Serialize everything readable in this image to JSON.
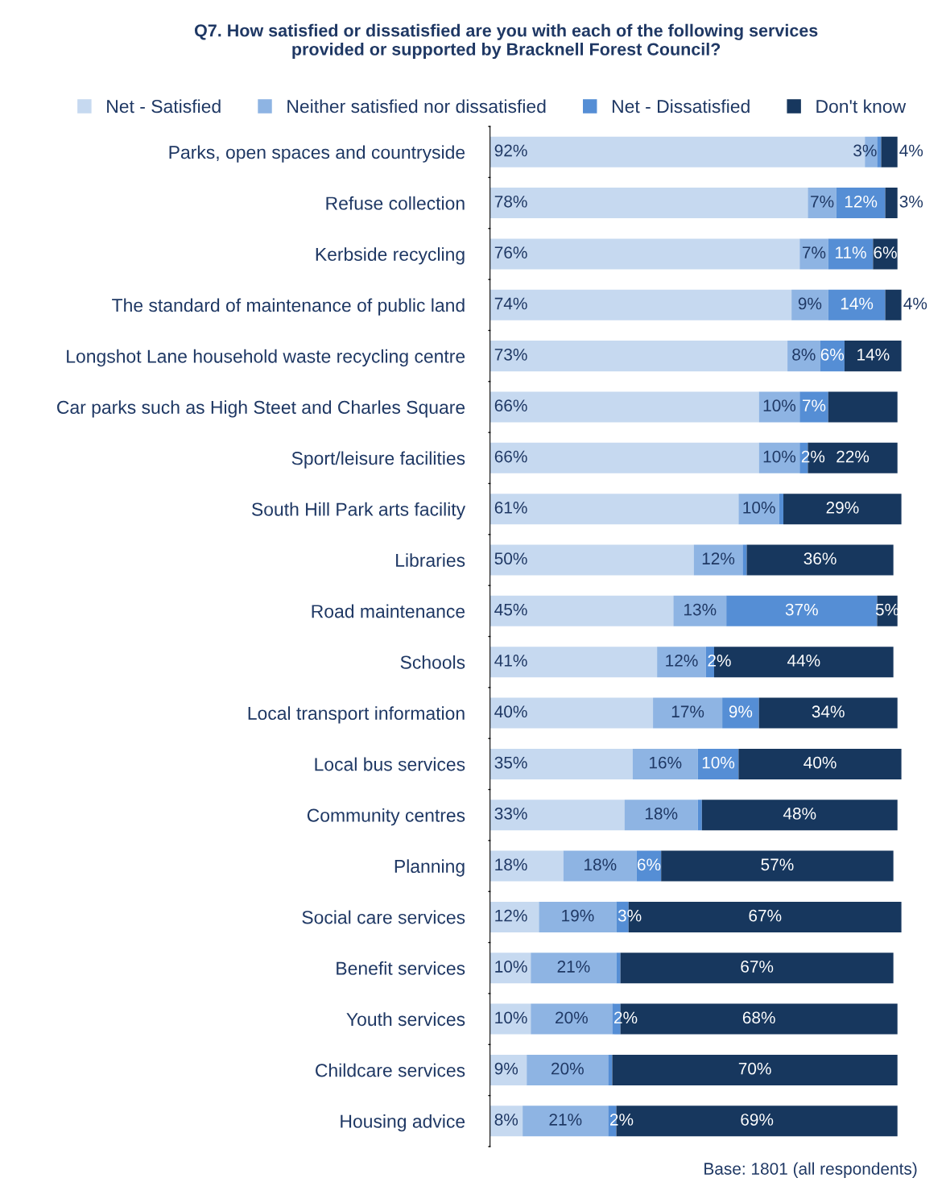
{
  "chart_data": {
    "type": "bar",
    "orientation": "horizontal",
    "stacked": true,
    "title": "Q7. How satisfied or dissatisfied are you with each of the following services\nprovided or supported by Bracknell Forest Council?",
    "categories": [
      "Parks, open spaces and countryside",
      "Refuse collection",
      "Kerbside recycling",
      "The standard of maintenance of public land",
      "Longshot Lane household waste recycling centre",
      "Car parks such as High Steet and Charles Square",
      "Sport/leisure facilities",
      "South Hill Park arts facility",
      "Libraries",
      "Road maintenance",
      "Schools",
      "Local transport information",
      "Local bus services",
      "Community centres",
      "Planning",
      "Social care services",
      "Benefit services",
      "Youth services",
      "Childcare services",
      "Housing advice"
    ],
    "series": [
      {
        "name": "Net - Satisfied",
        "color": "#c6d9f0",
        "values": [
          92,
          78,
          76,
          74,
          73,
          66,
          66,
          61,
          50,
          45,
          41,
          40,
          35,
          33,
          18,
          12,
          10,
          10,
          9,
          8
        ],
        "value_labels": [
          "92%",
          "78%",
          "76%",
          "74%",
          "73%",
          "66%",
          "66%",
          "61%",
          "50%",
          "45%",
          "41%",
          "40%",
          "35%",
          "33%",
          "18%",
          "12%",
          "10%",
          "10%",
          "9%",
          "8%"
        ]
      },
      {
        "name": "Neither satisfied nor dissatisfied",
        "color": "#8eb4e3",
        "values": [
          3,
          7,
          7,
          9,
          8,
          10,
          10,
          10,
          12,
          13,
          12,
          17,
          16,
          18,
          18,
          19,
          21,
          20,
          20,
          21
        ],
        "value_labels": [
          "3%",
          "7%",
          "7%",
          "9%",
          "8%",
          "10%",
          "10%",
          "10%",
          "12%",
          "13%",
          "12%",
          "17%",
          "16%",
          "18%",
          "18%",
          "19%",
          "21%",
          "20%",
          "20%",
          "21%"
        ]
      },
      {
        "name": "Net - Dissatisfied",
        "color": "#558ed5",
        "values": [
          1,
          12,
          11,
          14,
          6,
          7,
          2,
          1,
          1,
          37,
          2,
          9,
          10,
          1,
          6,
          3,
          1,
          2,
          1,
          2
        ],
        "value_labels": [
          null,
          "12%",
          "11%",
          "14%",
          "6%",
          "7%",
          "2%",
          null,
          null,
          "37%",
          "2%",
          "9%",
          "10%",
          null,
          "6%",
          "3%",
          null,
          "2%",
          null,
          "2%"
        ]
      },
      {
        "name": "Don't know",
        "color": "#17375e",
        "values": [
          4,
          3,
          6,
          4,
          14,
          17,
          22,
          29,
          36,
          5,
          44,
          34,
          40,
          48,
          57,
          67,
          67,
          68,
          70,
          69
        ],
        "value_labels": [
          "4%",
          "3%",
          "6%",
          "4%",
          "14%",
          null,
          "22%",
          "29%",
          "36%",
          "5%",
          "44%",
          "34%",
          "40%",
          "48%",
          "57%",
          "67%",
          "67%",
          "68%",
          "70%",
          "69%"
        ]
      }
    ],
    "xlim": [
      0,
      101
    ],
    "tick_labels": "y",
    "grid": false,
    "legend": "top",
    "annotations": [
      "Base: 1801 (all respondents)"
    ]
  }
}
